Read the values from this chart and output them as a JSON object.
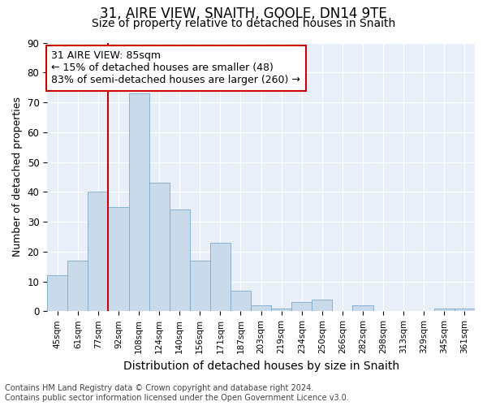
{
  "title": "31, AIRE VIEW, SNAITH, GOOLE, DN14 9TE",
  "subtitle": "Size of property relative to detached houses in Snaith",
  "xlabel": "Distribution of detached houses by size in Snaith",
  "ylabel": "Number of detached properties",
  "categories": [
    "45sqm",
    "61sqm",
    "77sqm",
    "92sqm",
    "108sqm",
    "124sqm",
    "140sqm",
    "156sqm",
    "171sqm",
    "187sqm",
    "203sqm",
    "219sqm",
    "234sqm",
    "250sqm",
    "266sqm",
    "282sqm",
    "298sqm",
    "313sqm",
    "329sqm",
    "345sqm",
    "361sqm"
  ],
  "values": [
    12,
    17,
    40,
    35,
    73,
    43,
    34,
    17,
    23,
    7,
    2,
    1,
    3,
    4,
    0,
    2,
    0,
    0,
    0,
    1,
    1
  ],
  "bar_color": "#c9daea",
  "bar_edge_color": "#7aaac8",
  "red_line_x": 2.5,
  "annotation_line1": "31 AIRE VIEW: 85sqm",
  "annotation_line2": "← 15% of detached houses are smaller (48)",
  "annotation_line3": "83% of semi-detached houses are larger (260) →",
  "annotation_box_color": "#ffffff",
  "annotation_box_edge": "#cc0000",
  "vline_color": "#cc0000",
  "ylim": [
    0,
    90
  ],
  "yticks": [
    0,
    10,
    20,
    30,
    40,
    50,
    60,
    70,
    80,
    90
  ],
  "background_color": "#e8eff8",
  "grid_color": "#ffffff",
  "footer_text": "Contains HM Land Registry data © Crown copyright and database right 2024.\nContains public sector information licensed under the Open Government Licence v3.0.",
  "title_fontsize": 12,
  "subtitle_fontsize": 10,
  "xlabel_fontsize": 10,
  "ylabel_fontsize": 9,
  "annot_fontsize": 9,
  "footer_fontsize": 7
}
